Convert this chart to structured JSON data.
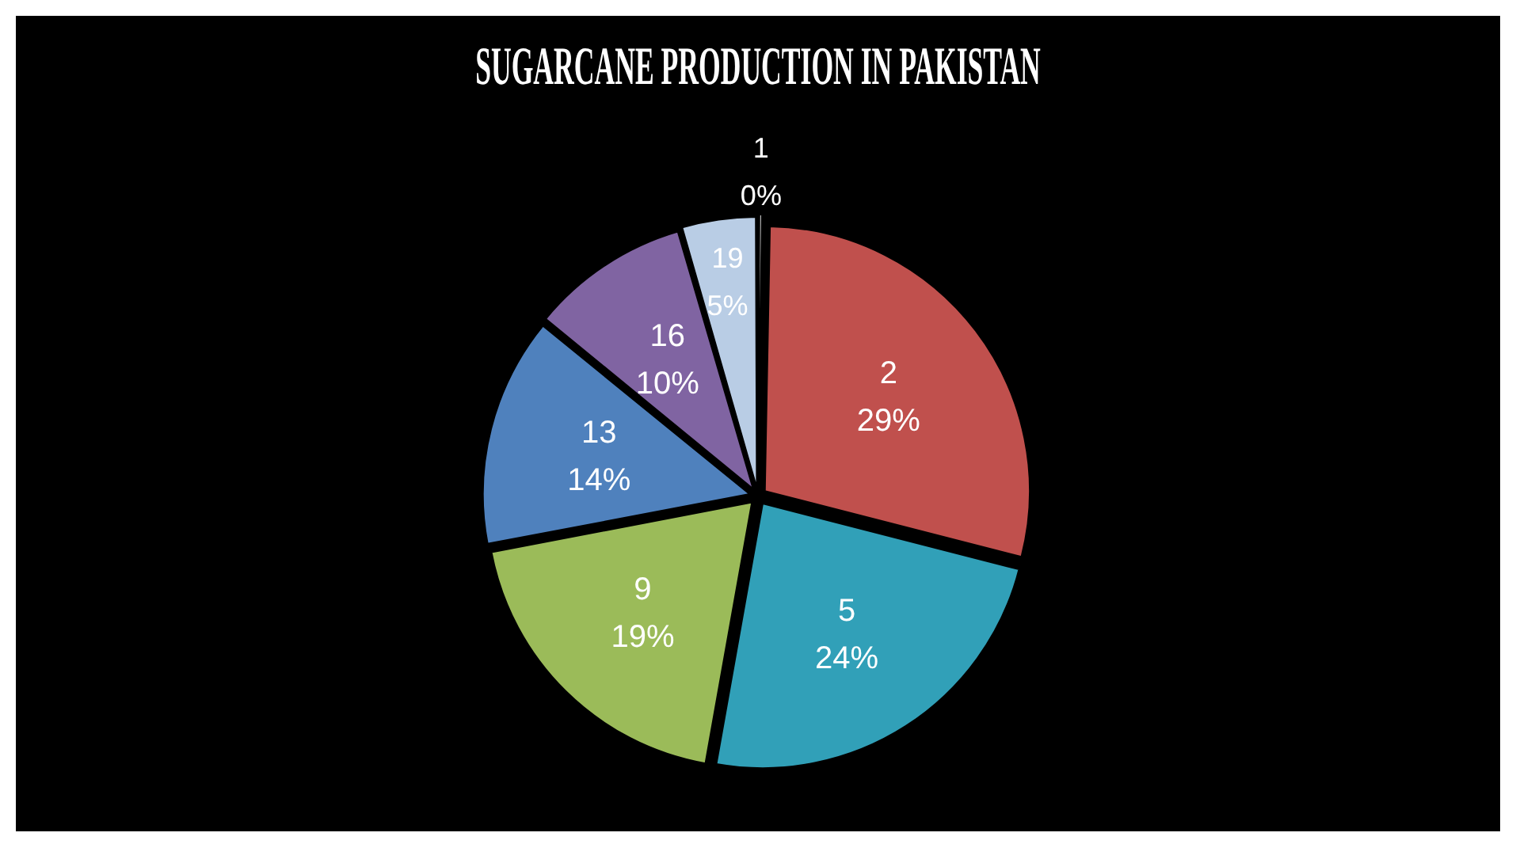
{
  "chart_data": {
    "type": "pie",
    "title": "SUGARCANE PRODUCTION IN PAKISTAN",
    "categories": [
      "1",
      "2",
      "5",
      "9",
      "13",
      "16",
      "19"
    ],
    "values": [
      0.3,
      28.7,
      23.8,
      19.2,
      13.9,
      9.6,
      4.5
    ],
    "value_labels": [
      "0%",
      "29%",
      "24%",
      "19%",
      "14%",
      "10%",
      "5%"
    ],
    "colors": [
      "#d9d9d9",
      "#c0504d",
      "#31a0b8",
      "#9bbb59",
      "#4f81bd",
      "#8064a2",
      "#b9cde5"
    ],
    "legend": false
  }
}
